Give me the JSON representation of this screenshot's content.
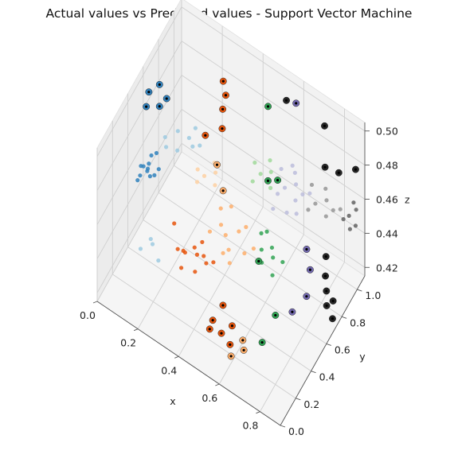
{
  "chart_data": {
    "type": "scatter",
    "title": "Actual values vs Predicted values - Support Vector Machine",
    "xlabel": "x",
    "ylabel": "y",
    "zlabel": "z",
    "xlim": [
      0.0,
      0.9
    ],
    "ylim": [
      0.0,
      1.1
    ],
    "zlim": [
      0.415,
      0.505
    ],
    "x_ticks": [
      "0.0",
      "0.2",
      "0.4",
      "0.6",
      "0.8"
    ],
    "y_ticks": [
      "0.0",
      "0.2",
      "0.4",
      "0.6",
      "0.8",
      "1.0"
    ],
    "z_ticks": [
      "0.42",
      "0.44",
      "0.46",
      "0.48",
      "0.50"
    ],
    "grid": true,
    "legend": null,
    "series": [
      {
        "color": "#3182bd",
        "points": [
          [
            0.02,
            0.55,
            0.452
          ],
          [
            0.03,
            0.58,
            0.449
          ],
          [
            0.05,
            0.52,
            0.454
          ],
          [
            0.01,
            0.5,
            0.447
          ],
          [
            0.04,
            0.6,
            0.456
          ],
          [
            0.06,
            0.53,
            0.451
          ],
          [
            0.02,
            0.62,
            0.448
          ],
          [
            0.07,
            0.56,
            0.45
          ],
          [
            0.03,
            0.48,
            0.453
          ],
          [
            0.05,
            0.64,
            0.455
          ],
          [
            0.0,
            0.57,
            0.449
          ],
          [
            0.08,
            0.59,
            0.452
          ]
        ]
      },
      {
        "color": "#9ecae1",
        "points": [
          [
            0.1,
            0.62,
            0.47
          ],
          [
            0.14,
            0.68,
            0.472
          ],
          [
            0.18,
            0.72,
            0.468
          ],
          [
            0.22,
            0.66,
            0.471
          ],
          [
            0.12,
            0.58,
            0.469
          ],
          [
            0.2,
            0.75,
            0.473
          ],
          [
            0.16,
            0.62,
            0.467
          ],
          [
            0.24,
            0.7,
            0.47
          ],
          [
            0.1,
            0.3,
            0.43
          ],
          [
            0.14,
            0.35,
            0.432
          ],
          [
            0.18,
            0.32,
            0.428
          ],
          [
            0.12,
            0.38,
            0.431
          ]
        ]
      },
      {
        "color": "#e6550d",
        "points": [
          [
            0.3,
            0.35,
            0.44
          ],
          [
            0.34,
            0.4,
            0.438
          ],
          [
            0.38,
            0.38,
            0.442
          ],
          [
            0.36,
            0.32,
            0.436
          ],
          [
            0.32,
            0.42,
            0.439
          ],
          [
            0.4,
            0.36,
            0.441
          ],
          [
            0.28,
            0.38,
            0.437
          ],
          [
            0.42,
            0.4,
            0.44
          ],
          [
            0.35,
            0.44,
            0.443
          ],
          [
            0.3,
            0.3,
            0.435
          ],
          [
            0.22,
            0.42,
            0.445
          ],
          [
            0.26,
            0.36,
            0.438
          ]
        ]
      },
      {
        "color": "#fdae6b",
        "points": [
          [
            0.45,
            0.48,
            0.452
          ],
          [
            0.5,
            0.52,
            0.455
          ],
          [
            0.48,
            0.44,
            0.449
          ],
          [
            0.42,
            0.5,
            0.454
          ],
          [
            0.55,
            0.46,
            0.451
          ],
          [
            0.4,
            0.55,
            0.458
          ],
          [
            0.52,
            0.56,
            0.456
          ],
          [
            0.46,
            0.42,
            0.447
          ],
          [
            0.58,
            0.5,
            0.453
          ],
          [
            0.44,
            0.58,
            0.46
          ],
          [
            0.38,
            0.46,
            0.45
          ],
          [
            0.5,
            0.4,
            0.446
          ]
        ]
      },
      {
        "color": "#fdd0a2",
        "points": [
          [
            0.3,
            0.6,
            0.465
          ],
          [
            0.34,
            0.64,
            0.467
          ],
          [
            0.28,
            0.56,
            0.463
          ],
          [
            0.36,
            0.58,
            0.466
          ],
          [
            0.32,
            0.68,
            0.468
          ],
          [
            0.26,
            0.62,
            0.464
          ]
        ]
      },
      {
        "color": "#31a354",
        "points": [
          [
            0.6,
            0.55,
            0.45
          ],
          [
            0.64,
            0.58,
            0.452
          ],
          [
            0.62,
            0.5,
            0.448
          ],
          [
            0.66,
            0.54,
            0.451
          ],
          [
            0.58,
            0.6,
            0.454
          ],
          [
            0.68,
            0.48,
            0.447
          ],
          [
            0.6,
            0.62,
            0.455
          ],
          [
            0.7,
            0.56,
            0.45
          ]
        ]
      },
      {
        "color": "#a1d99b",
        "points": [
          [
            0.52,
            0.75,
            0.472
          ],
          [
            0.56,
            0.78,
            0.474
          ],
          [
            0.5,
            0.7,
            0.47
          ],
          [
            0.58,
            0.72,
            0.471
          ],
          [
            0.54,
            0.82,
            0.476
          ],
          [
            0.48,
            0.78,
            0.473
          ]
        ]
      },
      {
        "color": "#bcbddc",
        "points": [
          [
            0.62,
            0.8,
            0.468
          ],
          [
            0.66,
            0.84,
            0.47
          ],
          [
            0.6,
            0.76,
            0.466
          ],
          [
            0.68,
            0.78,
            0.467
          ],
          [
            0.64,
            0.88,
            0.472
          ],
          [
            0.7,
            0.82,
            0.469
          ],
          [
            0.58,
            0.86,
            0.471
          ],
          [
            0.72,
            0.86,
            0.468
          ],
          [
            0.66,
            0.72,
            0.463
          ],
          [
            0.62,
            0.9,
            0.473
          ],
          [
            0.7,
            0.74,
            0.464
          ],
          [
            0.6,
            0.7,
            0.462
          ]
        ]
      },
      {
        "color": "#969696",
        "points": [
          [
            0.74,
            0.88,
            0.462
          ],
          [
            0.78,
            0.92,
            0.464
          ],
          [
            0.72,
            0.84,
            0.46
          ],
          [
            0.8,
            0.86,
            0.461
          ],
          [
            0.76,
            0.96,
            0.466
          ],
          [
            0.82,
            0.9,
            0.463
          ],
          [
            0.7,
            0.94,
            0.465
          ],
          [
            0.84,
            0.94,
            0.462
          ]
        ]
      },
      {
        "color": "#636363",
        "points": [
          [
            0.86,
            1.0,
            0.455
          ],
          [
            0.88,
            1.04,
            0.457
          ],
          [
            0.84,
            0.98,
            0.453
          ],
          [
            0.9,
            0.98,
            0.454
          ],
          [
            0.86,
            1.06,
            0.458
          ],
          [
            0.88,
            0.96,
            0.452
          ]
        ]
      }
    ],
    "highlighted": [
      {
        "color": "#3182bd",
        "points": [
          [
            0.02,
            0.62,
            0.49
          ],
          [
            0.05,
            0.68,
            0.492
          ],
          [
            0.08,
            0.6,
            0.488
          ],
          [
            0.1,
            0.64,
            0.491
          ],
          [
            0.03,
            0.56,
            0.487
          ]
        ]
      },
      {
        "color": "#e6550d",
        "points": [
          [
            0.28,
            0.9,
            0.495
          ],
          [
            0.3,
            0.88,
            0.49
          ],
          [
            0.3,
            0.84,
            0.485
          ],
          [
            0.32,
            0.78,
            0.48
          ],
          [
            0.26,
            0.72,
            0.476
          ],
          [
            0.5,
            0.18,
            0.43
          ],
          [
            0.55,
            0.16,
            0.428
          ],
          [
            0.5,
            0.14,
            0.428
          ],
          [
            0.58,
            0.22,
            0.43
          ],
          [
            0.6,
            0.14,
            0.427
          ],
          [
            0.52,
            0.26,
            0.434
          ]
        ]
      },
      {
        "color": "#fdae6b",
        "points": [
          [
            0.34,
            0.66,
            0.47
          ],
          [
            0.4,
            0.58,
            0.466
          ],
          [
            0.64,
            0.2,
            0.428
          ],
          [
            0.66,
            0.16,
            0.427
          ],
          [
            0.62,
            0.1,
            0.425
          ]
        ]
      },
      {
        "color": "#31a354",
        "points": [
          [
            0.5,
            0.9,
            0.498
          ],
          [
            0.56,
            0.74,
            0.472
          ],
          [
            0.6,
            0.76,
            0.474
          ],
          [
            0.62,
            0.46,
            0.452
          ],
          [
            0.74,
            0.36,
            0.438
          ],
          [
            0.72,
            0.24,
            0.43
          ]
        ]
      },
      {
        "color": "#756bb1",
        "points": [
          [
            0.6,
            1.0,
            0.5
          ],
          [
            0.78,
            0.66,
            0.456
          ],
          [
            0.82,
            0.6,
            0.452
          ],
          [
            0.84,
            0.5,
            0.446
          ],
          [
            0.8,
            0.42,
            0.44
          ]
        ]
      },
      {
        "color": "#252525",
        "points": [
          [
            0.56,
            0.98,
            0.5
          ],
          [
            0.74,
            1.0,
            0.498
          ],
          [
            0.78,
            0.9,
            0.485
          ],
          [
            0.84,
            0.92,
            0.485
          ],
          [
            0.9,
            0.98,
            0.487
          ],
          [
            0.86,
            0.7,
            0.455
          ],
          [
            0.88,
            0.64,
            0.45
          ],
          [
            0.9,
            0.6,
            0.446
          ],
          [
            0.92,
            0.55,
            0.443
          ],
          [
            0.96,
            0.52,
            0.441
          ],
          [
            0.94,
            0.58,
            0.445
          ]
        ]
      }
    ]
  }
}
